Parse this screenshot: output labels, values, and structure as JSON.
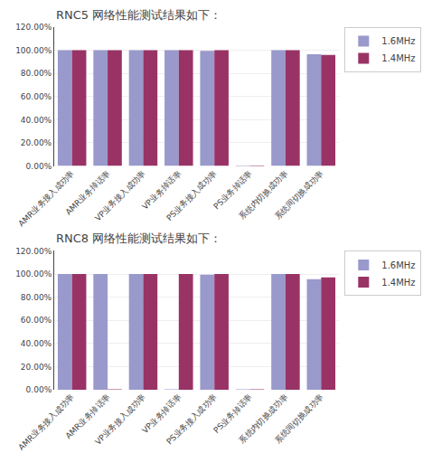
{
  "chart_data": [
    {
      "type": "bar",
      "title": "RNC5 网络性能测试结果如下：",
      "categories": [
        "AMR业务接入成功率",
        "AMR业务掉话率",
        "VP业务接入成功率",
        "VP业务掉话率",
        "PS业务接入成功率",
        "PS业务掉话率",
        "系统内切换成功率",
        "系统间切换成功率"
      ],
      "series": [
        {
          "name": "1.6MHz",
          "color": "#9999CC",
          "values": [
            100.0,
            100.0,
            100.0,
            100.0,
            99.5,
            0.3,
            100.0,
            96.5
          ]
        },
        {
          "name": "1.4MHz",
          "color": "#993366",
          "values": [
            100.0,
            100.0,
            100.0,
            100.0,
            100.0,
            0.3,
            100.0,
            96.0
          ]
        }
      ],
      "ylim": [
        0,
        120
      ],
      "yticks": [
        {
          "value": 0,
          "label": "0.00%"
        },
        {
          "value": 20,
          "label": "20.00%"
        },
        {
          "value": 40,
          "label": "40.00%"
        },
        {
          "value": 60,
          "label": "60.00%"
        },
        {
          "value": 80,
          "label": "80.00%"
        },
        {
          "value": 100,
          "label": "100.00%"
        },
        {
          "value": 120,
          "label": "120.00%"
        }
      ],
      "grid": true,
      "legend": "upper right"
    },
    {
      "type": "bar",
      "title": "RNC8 网络性能测试结果如下：",
      "categories": [
        "AMR业务接入成功率",
        "AMR业务掉话率",
        "VP业务接入成功率",
        "VP业务掉话率",
        "PS业务接入成功率",
        "PS业务掉话率",
        "系统内切换成功率",
        "系统间切换成功率"
      ],
      "series": [
        {
          "name": "1.6MHz",
          "color": "#9999CC",
          "values": [
            100.0,
            100.0,
            100.0,
            0.3,
            99.5,
            0.3,
            100.0,
            95.5
          ]
        },
        {
          "name": "1.4MHz",
          "color": "#993366",
          "values": [
            100.0,
            0.3,
            100.0,
            100.0,
            100.0,
            0.3,
            100.0,
            97.0
          ]
        }
      ],
      "ylim": [
        0,
        120
      ],
      "yticks": [
        {
          "value": 0,
          "label": "0.00%"
        },
        {
          "value": 20,
          "label": "20.00%"
        },
        {
          "value": 40,
          "label": "40.00%"
        },
        {
          "value": 60,
          "label": "60.00%"
        },
        {
          "value": 80,
          "label": "80.00%"
        },
        {
          "value": 100,
          "label": "100.00%"
        },
        {
          "value": 120,
          "label": "120.00%"
        }
      ],
      "grid": true,
      "legend": "upper right"
    }
  ]
}
